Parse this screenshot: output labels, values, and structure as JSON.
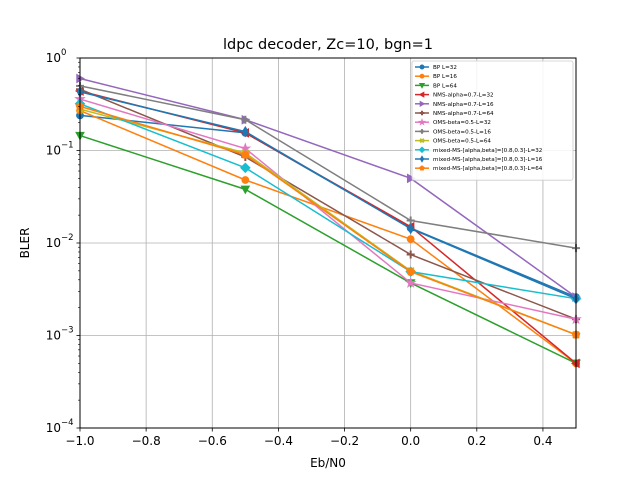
{
  "chart_data": {
    "type": "line",
    "title": "ldpc decoder, Zc=10, bgn=1",
    "xlabel": "Eb/N0",
    "ylabel": "BLER",
    "xlim": [
      -1.0,
      0.5
    ],
    "ylim": [
      0.0001,
      1
    ],
    "yscale": "log",
    "grid": true,
    "legend_position": "top-right",
    "x": [
      -1.0,
      -0.5,
      0.0,
      0.5
    ],
    "x_ticks": [
      -1.0,
      -0.8,
      -0.6,
      -0.4,
      -0.2,
      0.0,
      0.2,
      0.4
    ],
    "x_tick_labels": [
      "−1.0",
      "−0.8",
      "−0.6",
      "−0.4",
      "−0.2",
      "0.0",
      "0.2",
      "0.4"
    ],
    "y_ticks": [
      0.0001,
      0.001,
      0.01,
      0.1,
      1
    ],
    "y_tick_labels": [
      {
        "base": "10",
        "exp": "−4"
      },
      {
        "base": "10",
        "exp": "−3"
      },
      {
        "base": "10",
        "exp": "−2"
      },
      {
        "base": "10",
        "exp": "−1"
      },
      {
        "base": "10",
        "exp": "0"
      }
    ],
    "series": [
      {
        "name": "BP L=32",
        "color": "#1f77b4",
        "marker": "circle",
        "values": [
          0.24,
          0.155,
          0.0145,
          0.0026
        ]
      },
      {
        "name": "BP L=16",
        "color": "#ff7f0e",
        "marker": "circle",
        "values": [
          0.27,
          0.048,
          0.011,
          0.0005
        ]
      },
      {
        "name": "BP L=64",
        "color": "#2ca02c",
        "marker": "triangle-down",
        "values": [
          0.145,
          0.038,
          0.0037,
          0.0005
        ]
      },
      {
        "name": "NMS-alpha=0.7-L=32",
        "color": "#d62728",
        "marker": "triangle-left",
        "values": [
          0.44,
          0.155,
          0.015,
          0.0005
        ]
      },
      {
        "name": "NMS-alpha=0.7-L=16",
        "color": "#9467bd",
        "marker": "triangle-right",
        "values": [
          0.6,
          0.215,
          0.05,
          0.0026
        ]
      },
      {
        "name": "NMS-alpha=0.7-L=64",
        "color": "#8c564b",
        "marker": "plus",
        "values": [
          0.46,
          0.085,
          0.0075,
          0.0015
        ]
      },
      {
        "name": "OMS-beta=0.5-L=32",
        "color": "#e377c2",
        "marker": "star",
        "values": [
          0.36,
          0.105,
          0.0037,
          0.0015
        ]
      },
      {
        "name": "OMS-beta=0.5-L=16",
        "color": "#7f7f7f",
        "marker": "plus",
        "values": [
          0.5,
          0.215,
          0.0175,
          0.0088
        ]
      },
      {
        "name": "OMS-beta=0.5-L=64",
        "color": "#bcbd22",
        "marker": "x",
        "values": [
          0.28,
          0.094,
          0.005,
          0.00102
        ]
      },
      {
        "name": "mixed-MS-[alpha,beta]=[0.8,0.3]-L=32",
        "color": "#17becf",
        "marker": "diamond",
        "values": [
          0.32,
          0.065,
          0.0049,
          0.0025
        ]
      },
      {
        "name": "mixed-MS-[alpha,beta]=[0.8,0.3]-L=16",
        "color": "#1f77b4",
        "marker": "thin-diamond",
        "values": [
          0.43,
          0.16,
          0.0143,
          0.0025
        ]
      },
      {
        "name": "mixed-MS-[alpha,beta]=[0.8,0.3]-L=64",
        "color": "#ff7f0e",
        "marker": "pentagon",
        "values": [
          0.3,
          0.09,
          0.0049,
          0.00102
        ]
      }
    ]
  }
}
